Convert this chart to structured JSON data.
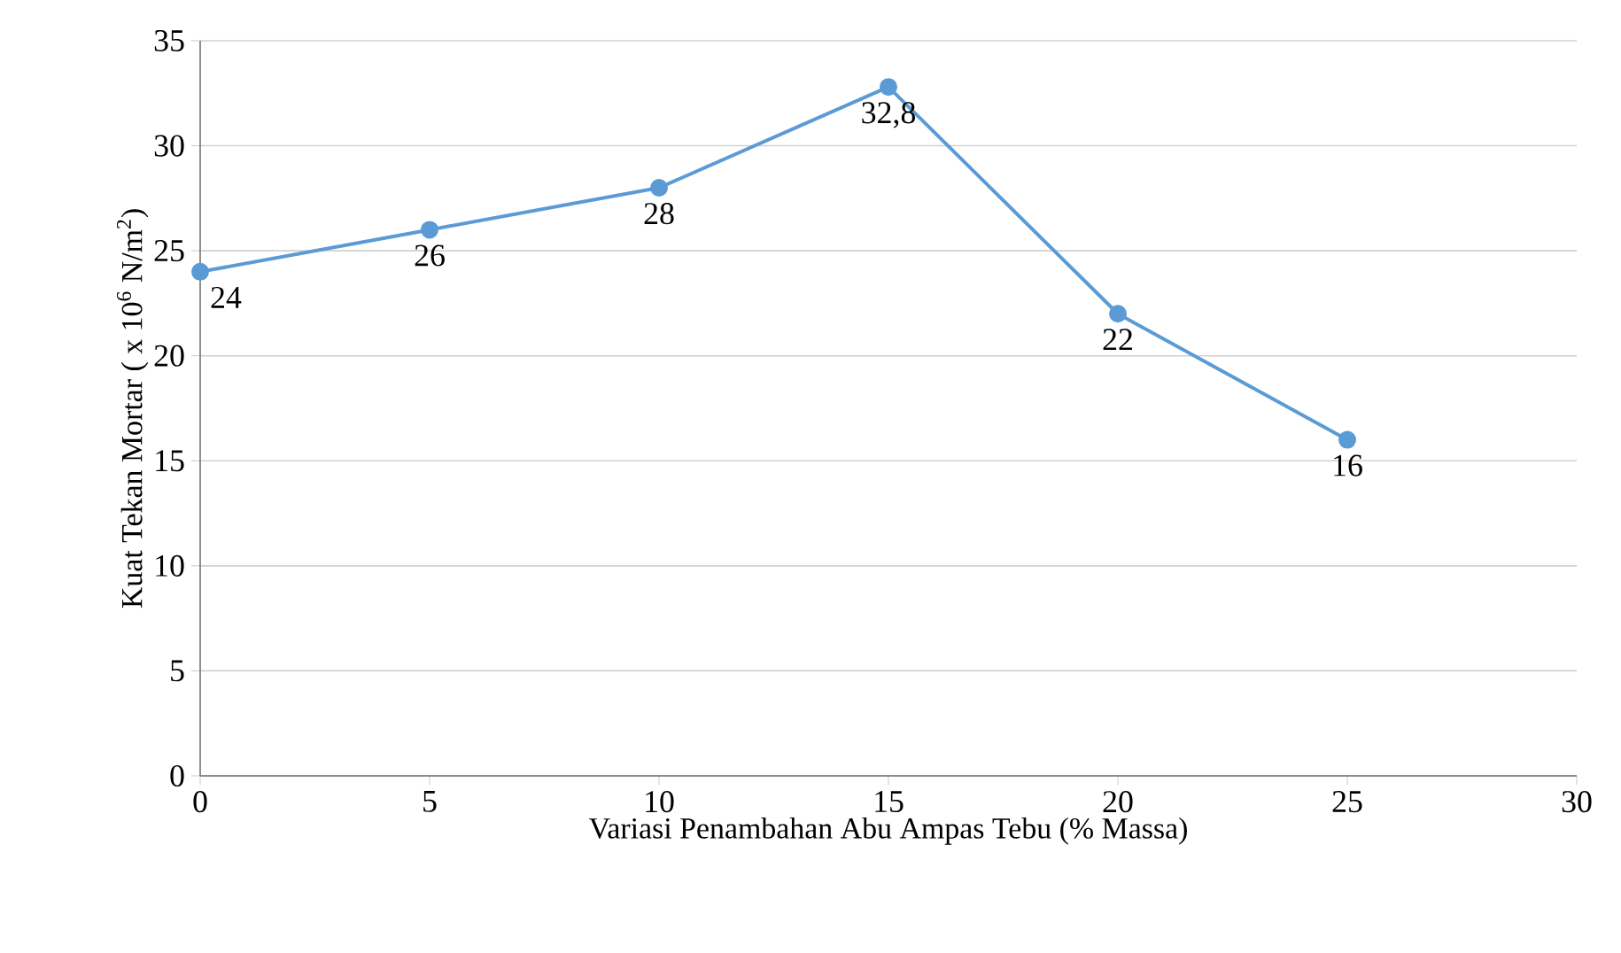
{
  "chart_data": {
    "type": "line",
    "xlabel": "Variasi Penambahan Abu Ampas Tebu (% Massa)",
    "ylabel": "Kuat Tekan Mortar ( x 10$^{6}$ N/m$^{2}$)",
    "x": [
      0,
      5,
      10,
      15,
      20,
      25
    ],
    "series": [
      {
        "color": "#5b9bd5",
        "values": [
          24,
          26,
          28,
          32.8,
          22,
          16
        ],
        "value_labels": [
          "24",
          "26",
          "28",
          "32,8",
          "22",
          "16"
        ]
      }
    ],
    "xlim": [
      0,
      30
    ],
    "xticks": [
      0,
      5,
      10,
      15,
      20,
      25,
      30
    ],
    "ylim": [
      0,
      35
    ],
    "yticks": [
      0,
      5,
      10,
      15,
      20,
      25,
      30,
      35
    ],
    "grid": "y",
    "marker": "circle"
  }
}
